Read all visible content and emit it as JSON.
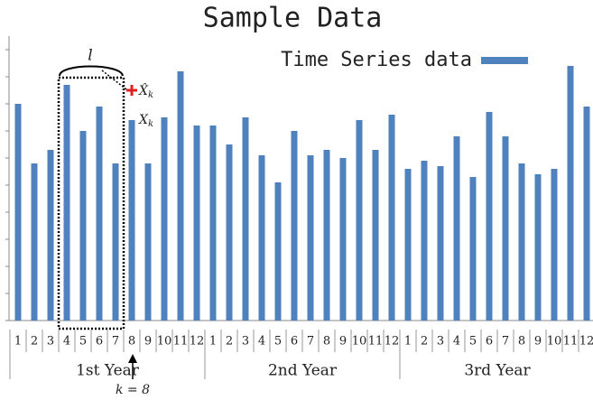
{
  "chart_data": {
    "type": "bar",
    "title": "Sample Data",
    "categories": [
      "1",
      "2",
      "3",
      "4",
      "5",
      "6",
      "7",
      "8",
      "9",
      "10",
      "11",
      "12",
      "1",
      "2",
      "3",
      "4",
      "5",
      "6",
      "7",
      "8",
      "9",
      "10",
      "11",
      "12",
      "1",
      "2",
      "3",
      "4",
      "5",
      "6",
      "7",
      "8",
      "9",
      "10",
      "11",
      "12"
    ],
    "groups": [
      "1st Year",
      "2nd Year",
      "3rd Year"
    ],
    "series": [
      {
        "name": "Time Series data",
        "color": "#4f81bd",
        "values": [
          8.0,
          5.8,
          6.3,
          8.7,
          7.0,
          7.9,
          5.8,
          7.4,
          5.8,
          7.5,
          9.2,
          7.2,
          7.2,
          6.5,
          7.5,
          6.1,
          5.1,
          7.0,
          6.1,
          6.3,
          6.0,
          7.4,
          6.3,
          7.6,
          5.6,
          5.9,
          5.7,
          6.8,
          5.3,
          7.7,
          6.8,
          5.8,
          5.4,
          5.6,
          9.4,
          7.9
        ]
      }
    ],
    "ylim": [
      0,
      10.5
    ],
    "yticks": [
      0,
      1,
      2,
      3,
      4,
      5,
      6,
      7,
      8,
      9,
      10
    ],
    "legend": "upper right",
    "annotations": {
      "window": "l",
      "forecast": {
        "symbol": "X̂",
        "sub": "k",
        "value": 8.5,
        "color": "#e02020"
      },
      "actual": {
        "symbol": "X",
        "sub": "k"
      },
      "pointer": "k = 8"
    }
  }
}
